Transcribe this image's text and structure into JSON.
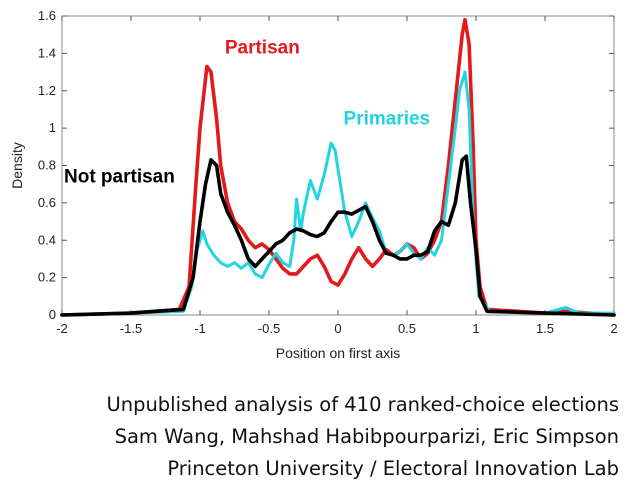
{
  "chart_data": {
    "type": "line",
    "title": "",
    "xlabel": "Position on first axis",
    "ylabel": "Density",
    "xlim": [
      -2,
      2
    ],
    "ylim": [
      0,
      1.6
    ],
    "xticks": [
      "-2",
      "-1.5",
      "-1",
      "-0.5",
      "0",
      "0.5",
      "1",
      "1.5",
      "2"
    ],
    "yticks": [
      "0",
      "0.2",
      "0.4",
      "0.6",
      "0.8",
      "1",
      "1.2",
      "1.4",
      "1.6"
    ],
    "grid": false,
    "series": [
      {
        "name": "Partisan",
        "color": "#e31a1c",
        "points": [
          [
            -2,
            0
          ],
          [
            -1.5,
            0.01
          ],
          [
            -1.15,
            0.03
          ],
          [
            -1.08,
            0.15
          ],
          [
            -1.03,
            0.7
          ],
          [
            -1.0,
            1.0
          ],
          [
            -0.95,
            1.33
          ],
          [
            -0.92,
            1.3
          ],
          [
            -0.88,
            1.05
          ],
          [
            -0.85,
            0.8
          ],
          [
            -0.8,
            0.6
          ],
          [
            -0.75,
            0.5
          ],
          [
            -0.7,
            0.46
          ],
          [
            -0.65,
            0.4
          ],
          [
            -0.6,
            0.36
          ],
          [
            -0.55,
            0.38
          ],
          [
            -0.5,
            0.35
          ],
          [
            -0.45,
            0.3
          ],
          [
            -0.4,
            0.25
          ],
          [
            -0.35,
            0.22
          ],
          [
            -0.3,
            0.22
          ],
          [
            -0.25,
            0.26
          ],
          [
            -0.2,
            0.3
          ],
          [
            -0.15,
            0.32
          ],
          [
            -0.1,
            0.26
          ],
          [
            -0.05,
            0.18
          ],
          [
            0,
            0.16
          ],
          [
            0.05,
            0.22
          ],
          [
            0.1,
            0.3
          ],
          [
            0.15,
            0.36
          ],
          [
            0.2,
            0.3
          ],
          [
            0.25,
            0.26
          ],
          [
            0.3,
            0.3
          ],
          [
            0.35,
            0.35
          ],
          [
            0.4,
            0.32
          ],
          [
            0.45,
            0.34
          ],
          [
            0.5,
            0.38
          ],
          [
            0.55,
            0.36
          ],
          [
            0.6,
            0.3
          ],
          [
            0.65,
            0.33
          ],
          [
            0.7,
            0.4
          ],
          [
            0.75,
            0.5
          ],
          [
            0.8,
            0.8
          ],
          [
            0.85,
            1.15
          ],
          [
            0.9,
            1.5
          ],
          [
            0.92,
            1.58
          ],
          [
            0.95,
            1.45
          ],
          [
            0.98,
            0.9
          ],
          [
            1.0,
            0.4
          ],
          [
            1.03,
            0.15
          ],
          [
            1.08,
            0.03
          ],
          [
            1.5,
            0.01
          ],
          [
            1.65,
            0.02
          ],
          [
            2,
            0
          ]
        ]
      },
      {
        "name": "Not partisan",
        "color": "#000000",
        "points": [
          [
            -2,
            0
          ],
          [
            -1.5,
            0.01
          ],
          [
            -1.12,
            0.03
          ],
          [
            -1.05,
            0.2
          ],
          [
            -1.0,
            0.5
          ],
          [
            -0.96,
            0.7
          ],
          [
            -0.92,
            0.83
          ],
          [
            -0.88,
            0.8
          ],
          [
            -0.85,
            0.65
          ],
          [
            -0.8,
            0.55
          ],
          [
            -0.75,
            0.48
          ],
          [
            -0.7,
            0.4
          ],
          [
            -0.65,
            0.3
          ],
          [
            -0.6,
            0.26
          ],
          [
            -0.55,
            0.3
          ],
          [
            -0.5,
            0.34
          ],
          [
            -0.45,
            0.38
          ],
          [
            -0.4,
            0.4
          ],
          [
            -0.35,
            0.44
          ],
          [
            -0.3,
            0.46
          ],
          [
            -0.25,
            0.45
          ],
          [
            -0.2,
            0.43
          ],
          [
            -0.15,
            0.42
          ],
          [
            -0.1,
            0.44
          ],
          [
            -0.05,
            0.5
          ],
          [
            0,
            0.55
          ],
          [
            0.05,
            0.55
          ],
          [
            0.1,
            0.54
          ],
          [
            0.15,
            0.56
          ],
          [
            0.2,
            0.58
          ],
          [
            0.25,
            0.5
          ],
          [
            0.3,
            0.4
          ],
          [
            0.35,
            0.33
          ],
          [
            0.4,
            0.32
          ],
          [
            0.45,
            0.3
          ],
          [
            0.5,
            0.3
          ],
          [
            0.55,
            0.32
          ],
          [
            0.6,
            0.32
          ],
          [
            0.65,
            0.34
          ],
          [
            0.7,
            0.45
          ],
          [
            0.75,
            0.5
          ],
          [
            0.8,
            0.48
          ],
          [
            0.85,
            0.6
          ],
          [
            0.9,
            0.83
          ],
          [
            0.93,
            0.85
          ],
          [
            0.96,
            0.6
          ],
          [
            1.0,
            0.35
          ],
          [
            1.03,
            0.1
          ],
          [
            1.08,
            0.02
          ],
          [
            1.5,
            0.01
          ],
          [
            2,
            0
          ]
        ]
      },
      {
        "name": "Primaries",
        "color": "#22d3e0",
        "points": [
          [
            -2,
            0
          ],
          [
            -1.5,
            0.01
          ],
          [
            -1.12,
            0.02
          ],
          [
            -1.06,
            0.15
          ],
          [
            -1.02,
            0.35
          ],
          [
            -0.98,
            0.45
          ],
          [
            -0.95,
            0.38
          ],
          [
            -0.9,
            0.32
          ],
          [
            -0.85,
            0.28
          ],
          [
            -0.8,
            0.26
          ],
          [
            -0.75,
            0.28
          ],
          [
            -0.7,
            0.25
          ],
          [
            -0.65,
            0.28
          ],
          [
            -0.6,
            0.22
          ],
          [
            -0.55,
            0.2
          ],
          [
            -0.5,
            0.27
          ],
          [
            -0.45,
            0.33
          ],
          [
            -0.4,
            0.28
          ],
          [
            -0.35,
            0.26
          ],
          [
            -0.32,
            0.4
          ],
          [
            -0.3,
            0.62
          ],
          [
            -0.27,
            0.45
          ],
          [
            -0.25,
            0.55
          ],
          [
            -0.2,
            0.72
          ],
          [
            -0.15,
            0.62
          ],
          [
            -0.1,
            0.75
          ],
          [
            -0.05,
            0.92
          ],
          [
            -0.02,
            0.88
          ],
          [
            0,
            0.78
          ],
          [
            0.05,
            0.55
          ],
          [
            0.1,
            0.42
          ],
          [
            0.15,
            0.5
          ],
          [
            0.2,
            0.6
          ],
          [
            0.25,
            0.52
          ],
          [
            0.3,
            0.45
          ],
          [
            0.35,
            0.33
          ],
          [
            0.4,
            0.32
          ],
          [
            0.45,
            0.34
          ],
          [
            0.5,
            0.38
          ],
          [
            0.55,
            0.33
          ],
          [
            0.6,
            0.3
          ],
          [
            0.65,
            0.36
          ],
          [
            0.7,
            0.32
          ],
          [
            0.75,
            0.4
          ],
          [
            0.8,
            0.7
          ],
          [
            0.85,
            1.0
          ],
          [
            0.88,
            1.2
          ],
          [
            0.92,
            1.3
          ],
          [
            0.95,
            1.1
          ],
          [
            0.98,
            0.5
          ],
          [
            1.02,
            0.1
          ],
          [
            1.1,
            0.02
          ],
          [
            1.5,
            0.01
          ],
          [
            1.65,
            0.04
          ],
          [
            1.75,
            0.01
          ],
          [
            2,
            0.01
          ]
        ]
      }
    ],
    "annotations": [
      "Partisan",
      "Not partisan",
      "Primaries"
    ]
  },
  "caption": {
    "line1": "Unpublished analysis of 410 ranked-choice elections",
    "line2": "Sam Wang, Mahshad Habibpourparizi, Eric Simpson",
    "line3": "Princeton University / Electoral Innovation Lab"
  }
}
